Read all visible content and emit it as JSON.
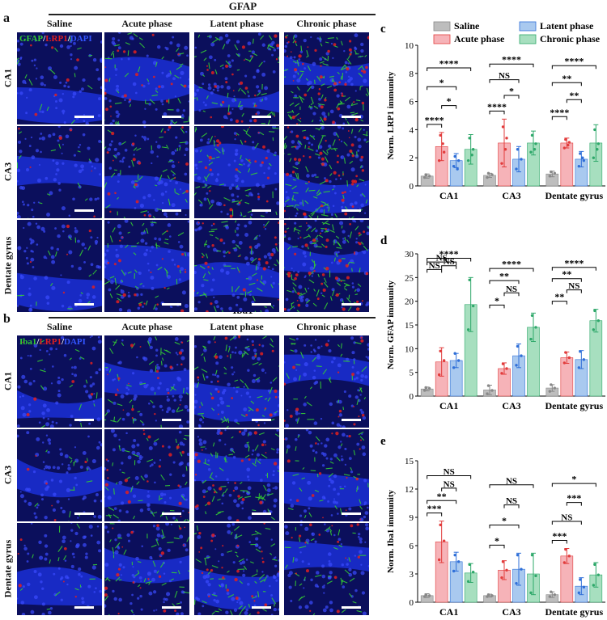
{
  "panel_a": {
    "letter": "a",
    "title": "GFAP",
    "stain_label": [
      "GFAP",
      "/",
      "LRP1",
      "/",
      "DAPI"
    ],
    "columns": [
      "Saline",
      "Acute phase",
      "Latent phase",
      "Chronic phase"
    ],
    "rows": [
      "CA1",
      "CA3",
      "Dentate gyrus"
    ]
  },
  "panel_b": {
    "letter": "b",
    "title": "Iba1",
    "stain_label": [
      "Iba1",
      "/",
      "LRP1",
      "/",
      "DAPI"
    ],
    "columns": [
      "Saline",
      "Acute phase",
      "Latent phase",
      "Chronic phase"
    ],
    "rows": [
      "CA1",
      "CA3",
      "Dentate gyrus"
    ]
  },
  "colors": {
    "saline": "#bdbdbd",
    "acute": "#f6b3b8",
    "latent": "#a9c9ef",
    "chronic": "#a7dfbf",
    "saline_dot": "#888888",
    "acute_dot": "#e23c3c",
    "latent_dot": "#2f6fd8",
    "chronic_dot": "#2ea86a",
    "green_stain": "#33cc33",
    "red_stain": "#e02020",
    "blue_stain": "#3355ff"
  },
  "chart_data": [
    {
      "letter": "c",
      "type": "bar",
      "legend": [
        "Saline",
        "Acute phase",
        "Latent phase",
        "Chronic phase"
      ],
      "categories": [
        "CA1",
        "CA3",
        "Dentate gyrus"
      ],
      "ylabel": "Norm. LRP1 immunity",
      "ylim": [
        0,
        10
      ],
      "yticks": [
        0,
        2,
        4,
        6,
        8,
        10
      ],
      "series": [
        {
          "name": "Saline",
          "values": [
            0.7,
            0.75,
            0.85
          ],
          "err": [
            0.15,
            0.15,
            0.2
          ]
        },
        {
          "name": "Acute phase",
          "values": [
            2.8,
            3.05,
            3.05
          ],
          "err": [
            1.0,
            1.7,
            0.35
          ]
        },
        {
          "name": "Latent phase",
          "values": [
            1.8,
            1.9,
            1.9
          ],
          "err": [
            0.5,
            0.9,
            0.55
          ]
        },
        {
          "name": "Chronic phase",
          "values": [
            2.6,
            3.05,
            3.05
          ],
          "err": [
            1.05,
            0.85,
            1.3
          ]
        }
      ],
      "points": [
        [
          [
            0.6,
            0.7,
            0.8
          ],
          [
            1.8,
            2.4,
            3.6,
            3.0
          ],
          [
            1.4,
            1.8,
            2.1,
            1.2
          ],
          [
            1.8,
            2.6,
            3.4,
            2.2
          ]
        ],
        [
          [
            0.6,
            0.8,
            0.9
          ],
          [
            1.6,
            3.4,
            4.2,
            2.6
          ],
          [
            1.2,
            1.9,
            2.6
          ],
          [
            2.4,
            3.0,
            3.6,
            2.6
          ]
        ],
        [
          [
            0.7,
            0.9,
            1.0
          ],
          [
            2.7,
            3.1,
            3.3,
            2.9
          ],
          [
            1.4,
            1.8,
            2.3,
            2.0
          ],
          [
            2.0,
            3.0,
            4.0,
            2.6
          ]
        ]
      ],
      "significance": [
        {
          "cat": 0,
          "a": 0,
          "b": 1,
          "label": "****",
          "level": 1
        },
        {
          "cat": 0,
          "a": 1,
          "b": 2,
          "label": "*",
          "level": 2
        },
        {
          "cat": 0,
          "a": 0,
          "b": 2,
          "label": "*",
          "level": 3
        },
        {
          "cat": 0,
          "a": 0,
          "b": 3,
          "label": "****",
          "level": 4
        },
        {
          "cat": 1,
          "a": 0,
          "b": 1,
          "label": "****",
          "level": 1
        },
        {
          "cat": 1,
          "a": 1,
          "b": 2,
          "label": "*",
          "level": 2
        },
        {
          "cat": 1,
          "a": 0,
          "b": 2,
          "label": "NS",
          "level": 3
        },
        {
          "cat": 1,
          "a": 0,
          "b": 3,
          "label": "****",
          "level": 4
        },
        {
          "cat": 2,
          "a": 0,
          "b": 1,
          "label": "****",
          "level": 1
        },
        {
          "cat": 2,
          "a": 1,
          "b": 2,
          "label": "**",
          "level": 2
        },
        {
          "cat": 2,
          "a": 0,
          "b": 2,
          "label": "**",
          "level": 3
        },
        {
          "cat": 2,
          "a": 0,
          "b": 3,
          "label": "****",
          "level": 4
        }
      ]
    },
    {
      "letter": "d",
      "type": "bar",
      "categories": [
        "CA1",
        "CA3",
        "Dentate gyrus"
      ],
      "ylabel": "Norm. GFAP immunity",
      "ylim": [
        0,
        30
      ],
      "yticks": [
        0,
        5,
        10,
        15,
        20,
        25,
        30
      ],
      "series": [
        {
          "name": "Saline",
          "values": [
            1.5,
            1.3,
            1.7
          ],
          "err": [
            0.4,
            1.0,
            0.7
          ]
        },
        {
          "name": "Acute phase",
          "values": [
            7.2,
            5.8,
            8.1
          ],
          "err": [
            3.0,
            1.2,
            1.2
          ]
        },
        {
          "name": "Latent phase",
          "values": [
            7.5,
            8.5,
            7.7
          ],
          "err": [
            1.5,
            2.5,
            1.9
          ]
        },
        {
          "name": "Chronic phase",
          "values": [
            19.3,
            14.5,
            15.9
          ],
          "err": [
            5.7,
            3.0,
            2.4
          ]
        }
      ],
      "points": [
        [
          [
            1.2,
            1.6,
            1.8
          ],
          [
            4.5,
            7.5,
            9.5
          ],
          [
            6.0,
            7.5,
            9.0
          ],
          [
            14.0,
            19.0,
            24.5
          ]
        ],
        [
          [
            0.5,
            1.2,
            2.2
          ],
          [
            4.8,
            5.8,
            6.8
          ],
          [
            6.5,
            8.5,
            10.5
          ],
          [
            12.0,
            14.5,
            17.0
          ]
        ],
        [
          [
            1.0,
            1.7,
            2.4
          ],
          [
            7.0,
            8.1,
            9.2
          ],
          [
            6.0,
            7.7,
            9.4
          ],
          [
            14.0,
            15.9,
            18.0
          ]
        ]
      ],
      "significance": [
        {
          "cat": 0,
          "a": 0,
          "b": 1,
          "label": "NS",
          "level": 1
        },
        {
          "cat": 0,
          "a": 1,
          "b": 2,
          "label": "NS",
          "level": 2
        },
        {
          "cat": 0,
          "a": 0,
          "b": 2,
          "label": "NS",
          "level": 3
        },
        {
          "cat": 0,
          "a": 0,
          "b": 3,
          "label": "****",
          "level": 4
        },
        {
          "cat": 1,
          "a": 0,
          "b": 1,
          "label": "*",
          "level": 1
        },
        {
          "cat": 1,
          "a": 1,
          "b": 2,
          "label": "NS",
          "level": 2
        },
        {
          "cat": 1,
          "a": 0,
          "b": 2,
          "label": "**",
          "level": 3
        },
        {
          "cat": 1,
          "a": 0,
          "b": 3,
          "label": "****",
          "level": 4
        },
        {
          "cat": 2,
          "a": 0,
          "b": 1,
          "label": "**",
          "level": 1
        },
        {
          "cat": 2,
          "a": 1,
          "b": 2,
          "label": "NS",
          "level": 2
        },
        {
          "cat": 2,
          "a": 0,
          "b": 2,
          "label": "**",
          "level": 3
        },
        {
          "cat": 2,
          "a": 0,
          "b": 3,
          "label": "****",
          "level": 4
        }
      ]
    },
    {
      "letter": "e",
      "type": "bar",
      "categories": [
        "CA1",
        "CA3",
        "Dentate gyrus"
      ],
      "ylabel": "Norm. Iba1 immunity",
      "ylim": [
        0,
        15
      ],
      "yticks": [
        0,
        3,
        6,
        9,
        12,
        15
      ],
      "series": [
        {
          "name": "Saline",
          "values": [
            0.7,
            0.7,
            0.8
          ],
          "err": [
            0.2,
            0.15,
            0.3
          ]
        },
        {
          "name": "Acute phase",
          "values": [
            6.4,
            3.4,
            4.9
          ],
          "err": [
            2.2,
            1.0,
            0.8
          ]
        },
        {
          "name": "Latent phase",
          "values": [
            4.3,
            3.5,
            1.7
          ],
          "err": [
            1.0,
            1.7,
            0.9
          ]
        },
        {
          "name": "Chronic phase",
          "values": [
            3.1,
            3.0,
            2.9
          ],
          "err": [
            1.0,
            2.2,
            1.3
          ]
        }
      ],
      "points": [
        [
          [
            0.6,
            0.7,
            0.8
          ],
          [
            4.5,
            6.5,
            8.2
          ],
          [
            3.3,
            4.3,
            5.0
          ],
          [
            2.2,
            3.2,
            4.0
          ]
        ],
        [
          [
            0.6,
            0.7,
            0.8
          ],
          [
            2.6,
            3.4,
            4.3
          ],
          [
            2.0,
            3.5,
            5.0
          ],
          [
            1.0,
            2.8,
            5.0
          ]
        ],
        [
          [
            0.6,
            0.8,
            1.1
          ],
          [
            4.2,
            4.9,
            5.6
          ],
          [
            1.0,
            1.6,
            2.4
          ],
          [
            1.8,
            2.9,
            4.0
          ]
        ]
      ],
      "significance": [
        {
          "cat": 0,
          "a": 0,
          "b": 1,
          "label": "***",
          "level": 1
        },
        {
          "cat": 0,
          "a": 0,
          "b": 2,
          "label": "**",
          "level": 2
        },
        {
          "cat": 0,
          "a": 1,
          "b": 2,
          "label": "NS",
          "level": 3
        },
        {
          "cat": 0,
          "a": 0,
          "b": 3,
          "label": "NS",
          "level": 4
        },
        {
          "cat": 1,
          "a": 0,
          "b": 1,
          "label": "*",
          "level": 1
        },
        {
          "cat": 1,
          "a": 0,
          "b": 2,
          "label": "*",
          "level": 2
        },
        {
          "cat": 1,
          "a": 1,
          "b": 2,
          "label": "NS",
          "level": 3
        },
        {
          "cat": 1,
          "a": 0,
          "b": 3,
          "label": "NS",
          "level": 4
        },
        {
          "cat": 2,
          "a": 0,
          "b": 1,
          "label": "***",
          "level": 1
        },
        {
          "cat": 2,
          "a": 0,
          "b": 2,
          "label": "NS",
          "level": 2
        },
        {
          "cat": 2,
          "a": 1,
          "b": 2,
          "label": "***",
          "level": 3
        },
        {
          "cat": 2,
          "a": 0,
          "b": 3,
          "label": "*",
          "level": 4
        }
      ]
    }
  ]
}
